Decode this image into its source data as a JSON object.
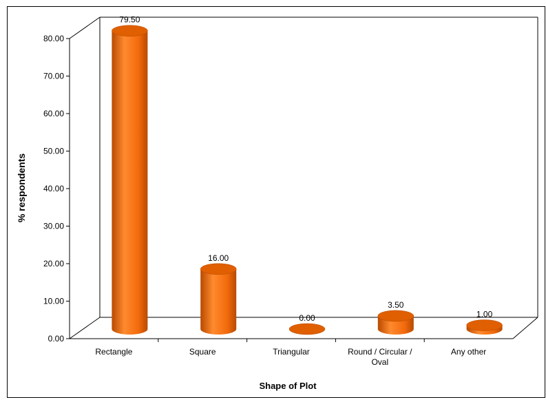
{
  "chart_data": {
    "type": "bar",
    "categories": [
      "Rectangle",
      "Square",
      "Triangular",
      "Round / Circular / Oval",
      "Any other"
    ],
    "category_label_lines": [
      [
        "Rectangle"
      ],
      [
        "Square"
      ],
      [
        "Triangular"
      ],
      [
        "Round / Circular /",
        "Oval"
      ],
      [
        "Any other"
      ]
    ],
    "values": [
      79.5,
      16.0,
      0.0,
      3.5,
      1.0
    ],
    "value_labels": [
      "79.50",
      "16.00",
      "0.00",
      "3.50",
      "1.00"
    ],
    "title": "",
    "xlabel": "Shape of Plot",
    "ylabel": "% respondents",
    "ylim": [
      0,
      80
    ],
    "yticks": [
      "0.00",
      "10.00",
      "20.00",
      "30.00",
      "40.00",
      "50.00",
      "60.00",
      "70.00",
      "80.00"
    ],
    "grid": false,
    "legend": "none",
    "style": "3d-cylinder",
    "colors": {
      "bar_light": "#ff8a2e",
      "bar_mid": "#f26a0c",
      "bar_dark": "#b84a00",
      "bar_top": "#e05f00",
      "axis": "#000000",
      "frame": "#000000"
    }
  }
}
